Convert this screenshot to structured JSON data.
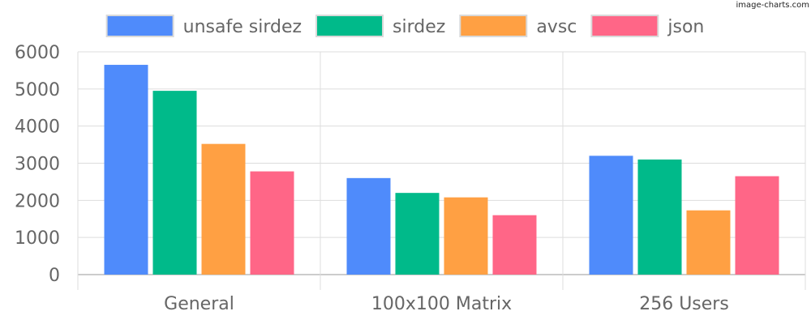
{
  "watermark": "image-charts.com",
  "chart_data": {
    "type": "bar",
    "categories": [
      "General",
      "100x100 Matrix",
      "256 Users"
    ],
    "series": [
      {
        "name": "unsafe sirdez",
        "color": "#4f8bfb",
        "values": [
          5650,
          2600,
          3200
        ]
      },
      {
        "name": "sirdez",
        "color": "#00ba8a",
        "values": [
          4950,
          2200,
          3100
        ]
      },
      {
        "name": "avsc",
        "color": "#ffa043",
        "values": [
          3520,
          2080,
          1730
        ]
      },
      {
        "name": "json",
        "color": "#ff6687",
        "values": [
          2780,
          1600,
          2650
        ]
      }
    ],
    "ylim": [
      0,
      6000
    ],
    "yticks": [
      0,
      1000,
      2000,
      3000,
      4000,
      5000,
      6000
    ],
    "grid": true,
    "legend_position": "top"
  }
}
